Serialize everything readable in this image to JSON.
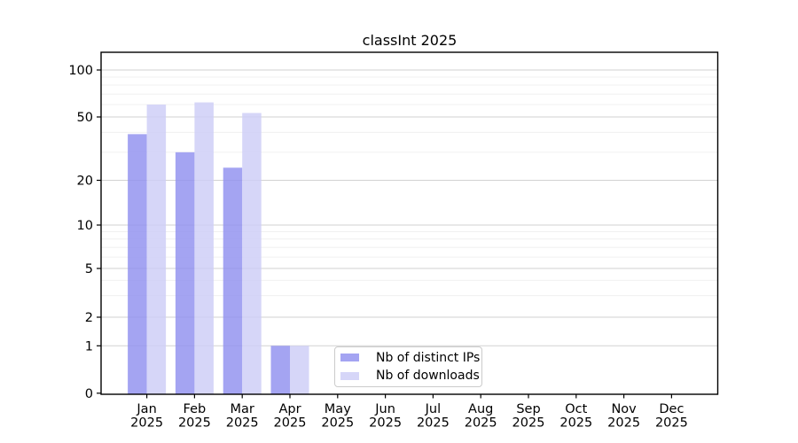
{
  "page": {
    "background": "#ffffff"
  },
  "chart_data": {
    "type": "bar",
    "title": "classInt 2025",
    "categories": [
      "Jan",
      "Feb",
      "Mar",
      "Apr",
      "May",
      "Jun",
      "Jul",
      "Aug",
      "Sep",
      "Oct",
      "Nov",
      "Dec"
    ],
    "category_year": "2025",
    "series": [
      {
        "name": "Nb of distinct IPs",
        "color": "#9494f0",
        "values": [
          39,
          30,
          24,
          1,
          0,
          0,
          0,
          0,
          0,
          0,
          0,
          0
        ]
      },
      {
        "name": "Nb of downloads",
        "color": "#cfcff7",
        "values": [
          60,
          62,
          53,
          1,
          0,
          0,
          0,
          0,
          0,
          0,
          0,
          0
        ]
      }
    ],
    "yscale": "log-like",
    "yticks": [
      0,
      1,
      2,
      5,
      10,
      20,
      50,
      100
    ],
    "minor_gridlines": [
      3,
      4,
      6,
      7,
      8,
      9,
      30,
      40,
      60,
      70,
      80,
      90
    ],
    "ylim": [
      0,
      130
    ],
    "grid": "horizontal-only",
    "legend_position": "bottom-center",
    "bar_opacity": 0.85,
    "axis_color": "#000000",
    "grid_major_color": "#d2d2d2",
    "grid_minor_color": "#f0f0f0",
    "text_color": "#000000"
  }
}
